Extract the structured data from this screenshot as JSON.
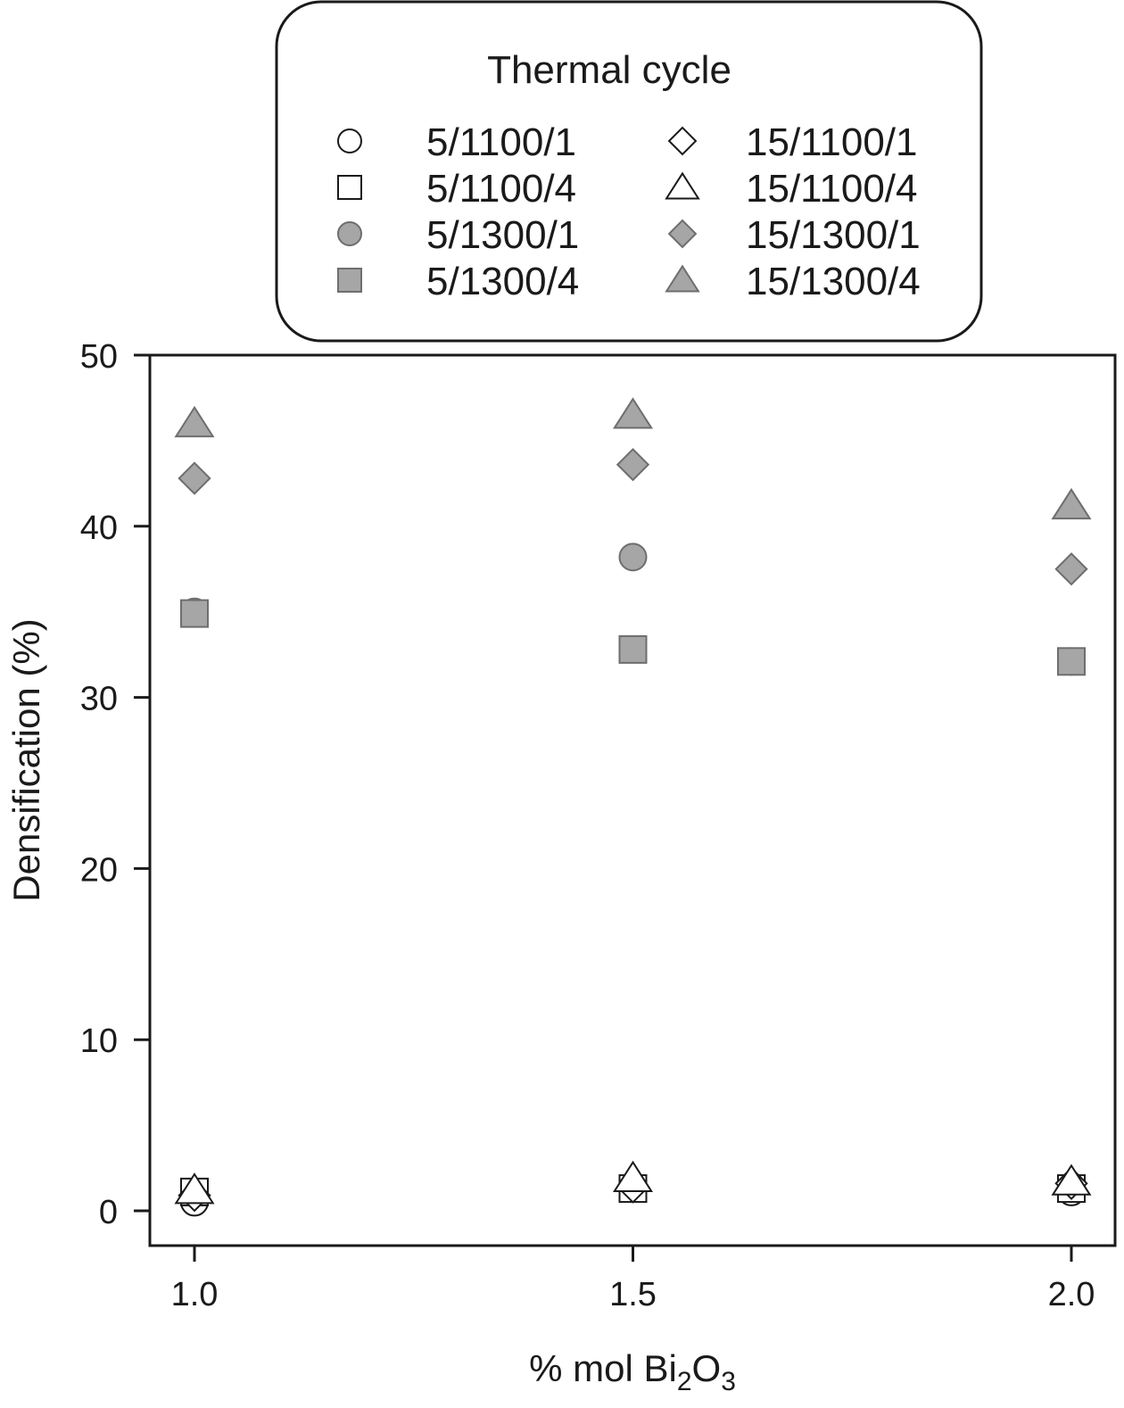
{
  "chart_data": {
    "type": "scatter",
    "xlabel_prefix": "% mol Bi",
    "xlabel_sub1": "2",
    "xlabel_mid": "O",
    "xlabel_sub2": "3",
    "ylabel": "Densification (%)",
    "x_ticks": [
      "1.0",
      "1.5",
      "2.0"
    ],
    "x_tick_values": [
      1.0,
      1.5,
      2.0
    ],
    "xlim": [
      0.95,
      2.05
    ],
    "y_ticks": [
      "0",
      "10",
      "20",
      "30",
      "40",
      "50"
    ],
    "ylim": [
      -2,
      50
    ],
    "grid": false,
    "legend": {
      "title": "Thermal cycle",
      "placement": "top-center"
    },
    "series": [
      {
        "name": "5/1100/1",
        "marker": "circle",
        "fill": "open",
        "x": [
          1.0,
          1.5,
          2.0
        ],
        "y": [
          0.5,
          1.3,
          1.1
        ]
      },
      {
        "name": "5/1100/4",
        "marker": "square",
        "fill": "open",
        "x": [
          1.0,
          1.5,
          2.0
        ],
        "y": [
          1.1,
          1.3,
          1.3
        ]
      },
      {
        "name": "5/1300/1",
        "marker": "circle",
        "fill": "filled",
        "x": [
          1.0,
          1.5,
          2.0
        ],
        "y": [
          35.0,
          38.2,
          32.1
        ]
      },
      {
        "name": "5/1300/4",
        "marker": "square",
        "fill": "filled",
        "x": [
          1.0,
          1.5,
          2.0
        ],
        "y": [
          34.9,
          32.8,
          32.1
        ]
      },
      {
        "name": "15/1100/1",
        "marker": "diamond",
        "fill": "open",
        "x": [
          1.0,
          1.5,
          2.0
        ],
        "y": [
          0.9,
          1.4,
          1.6
        ]
      },
      {
        "name": "15/1100/4",
        "marker": "triangle",
        "fill": "open",
        "x": [
          1.0,
          1.5,
          2.0
        ],
        "y": [
          1.2,
          1.9,
          1.7
        ]
      },
      {
        "name": "15/1300/1",
        "marker": "diamond",
        "fill": "filled",
        "x": [
          1.0,
          1.5,
          2.0
        ],
        "y": [
          42.8,
          43.6,
          37.5
        ]
      },
      {
        "name": "15/1300/4",
        "marker": "triangle",
        "fill": "filled",
        "x": [
          1.0,
          1.5,
          2.0
        ],
        "y": [
          46.0,
          46.5,
          41.2
        ]
      }
    ]
  },
  "colors": {
    "filled_marker": "#a6a6a6",
    "open_marker": "#ffffff",
    "stroke": "#1a1a1a"
  }
}
